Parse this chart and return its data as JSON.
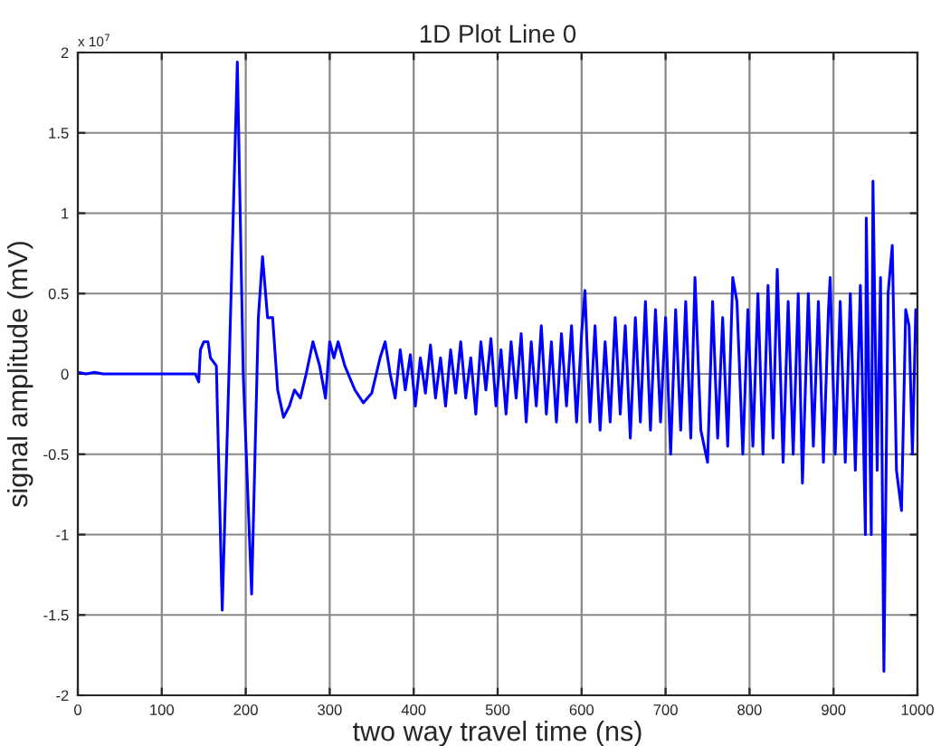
{
  "chart_data": {
    "type": "line",
    "title": "1D Plot Line 0",
    "xlabel": "two way travel time (ns)",
    "ylabel": "signal amplitude (mV)",
    "annotations": [
      "x 10$^{7}$"
    ],
    "series": [
      {
        "color": "#0000ff",
        "x": [
          0,
          10,
          20,
          30,
          40,
          60,
          100,
          140,
          144,
          146,
          150,
          155,
          158,
          165,
          172,
          180,
          190,
          197,
          207,
          215,
          220,
          226,
          232,
          238,
          245,
          252,
          258,
          265,
          272,
          280,
          288,
          295,
          300,
          305,
          310,
          318,
          330,
          340,
          350,
          360,
          366,
          372,
          378,
          384,
          390,
          396,
          402,
          408,
          414,
          420,
          426,
          432,
          438,
          444,
          450,
          456,
          462,
          468,
          474,
          480,
          486,
          492,
          498,
          504,
          510,
          516,
          522,
          528,
          534,
          540,
          546,
          552,
          558,
          564,
          570,
          576,
          582,
          588,
          594,
          600,
          604,
          610,
          616,
          622,
          628,
          634,
          640,
          646,
          652,
          658,
          664,
          670,
          676,
          682,
          688,
          694,
          700,
          706,
          712,
          718,
          724,
          730,
          735,
          742,
          750,
          756,
          762,
          768,
          774,
          780,
          785,
          792,
          798,
          804,
          810,
          816,
          822,
          828,
          833,
          840,
          846,
          852,
          858,
          863,
          870,
          876,
          882,
          888,
          894,
          896,
          902,
          908,
          914,
          920,
          926,
          932,
          938,
          939,
          945,
          947,
          952,
          956,
          960,
          965,
          970,
          975,
          981,
          986,
          990,
          994,
          998,
          1000
        ],
        "values": [
          0.01,
          0.0,
          0.01,
          0.0,
          0.0,
          0.0,
          0.0,
          0.0,
          -0.05,
          0.15,
          0.2,
          0.2,
          0.1,
          0.05,
          -1.47,
          0.0,
          1.94,
          0.0,
          -1.37,
          0.35,
          0.73,
          0.35,
          0.35,
          -0.1,
          -0.27,
          -0.2,
          -0.1,
          -0.15,
          0.0,
          0.2,
          0.05,
          -0.15,
          0.2,
          0.1,
          0.2,
          0.05,
          -0.1,
          -0.18,
          -0.12,
          0.1,
          0.2,
          0.0,
          -0.15,
          0.15,
          -0.1,
          0.12,
          -0.2,
          0.1,
          -0.12,
          0.18,
          -0.15,
          0.1,
          -0.2,
          0.15,
          -0.12,
          0.2,
          -0.15,
          0.1,
          -0.25,
          0.2,
          -0.1,
          0.22,
          -0.2,
          0.15,
          -0.25,
          0.2,
          -0.15,
          0.25,
          -0.3,
          0.2,
          -0.2,
          0.3,
          -0.25,
          0.2,
          -0.3,
          0.25,
          -0.2,
          0.3,
          -0.3,
          0.25,
          0.52,
          -0.3,
          0.3,
          -0.35,
          0.2,
          -0.3,
          0.35,
          -0.25,
          0.3,
          -0.4,
          0.35,
          -0.3,
          0.45,
          -0.35,
          0.4,
          -0.3,
          0.35,
          -0.5,
          0.4,
          -0.35,
          0.45,
          -0.4,
          0.6,
          -0.35,
          -0.55,
          0.45,
          -0.4,
          0.35,
          -0.45,
          0.6,
          0.45,
          -0.5,
          0.4,
          -0.45,
          0.5,
          -0.5,
          0.55,
          -0.4,
          0.65,
          -0.55,
          0.45,
          -0.5,
          0.5,
          -0.68,
          0.5,
          -0.45,
          0.45,
          -0.55,
          0.4,
          0.6,
          -0.5,
          0.45,
          -0.55,
          0.5,
          -0.6,
          0.55,
          -1.0,
          0.97,
          -1.0,
          1.2,
          -0.6,
          0.6,
          -1.85,
          0.5,
          0.8,
          -0.6,
          -0.85,
          0.4,
          0.3,
          -0.5,
          0.4,
          0.2
        ]
      }
    ],
    "xlim": [
      0,
      1000
    ],
    "xticks": [
      0,
      100,
      200,
      300,
      400,
      500,
      600,
      700,
      800,
      900,
      1000
    ],
    "ylim": [
      -2,
      2
    ],
    "yticks": [
      -2,
      -1.5,
      -1,
      -0.5,
      0,
      0.5,
      1,
      1.5,
      2
    ],
    "grid": true,
    "legend": false,
    "marker": "none",
    "line_style": "solid"
  }
}
